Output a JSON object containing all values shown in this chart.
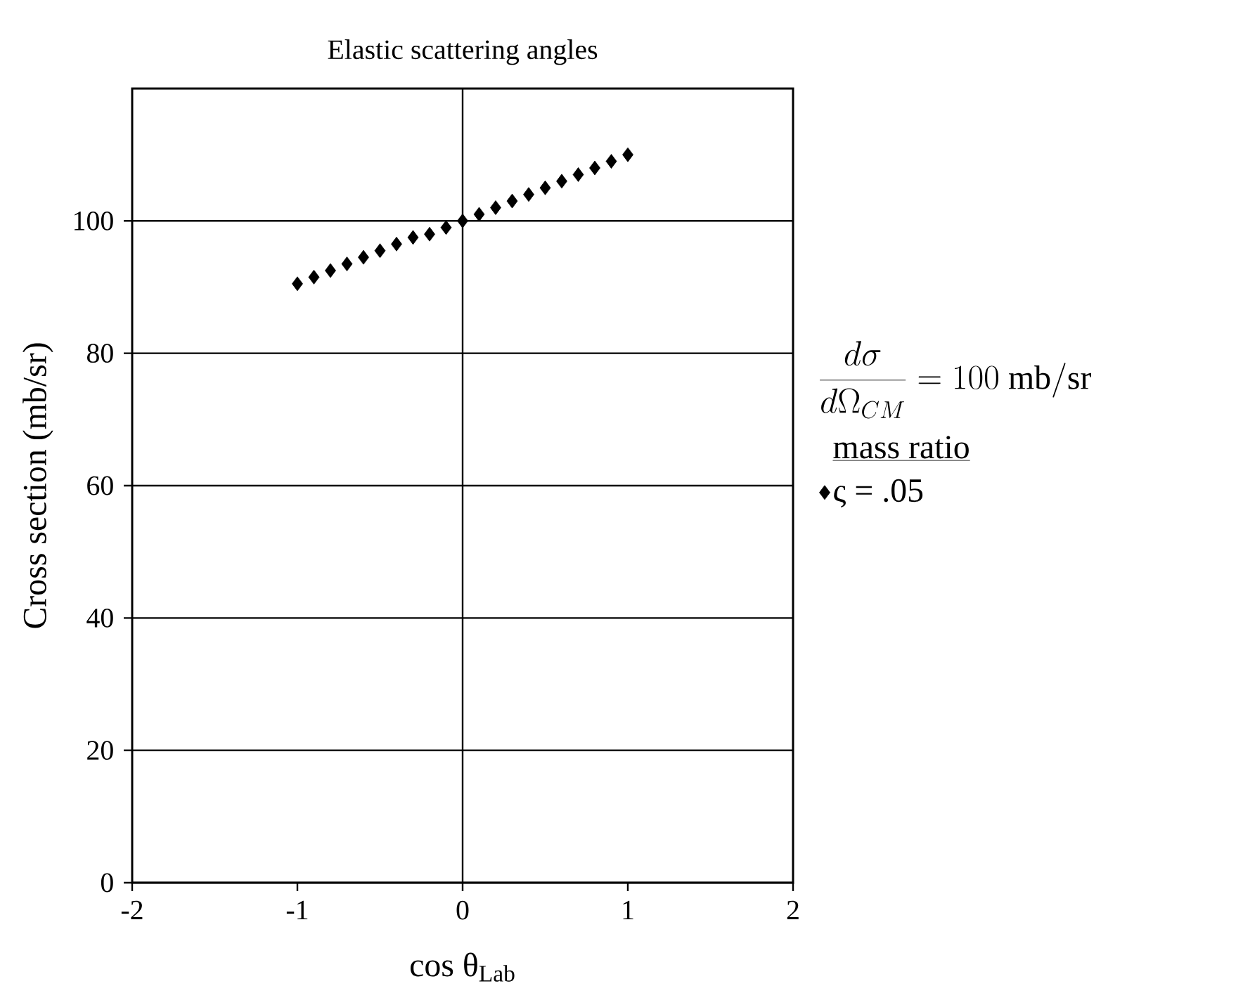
{
  "chart_data": {
    "type": "scatter",
    "title": "Elastic scattering angles",
    "xlabel": "cos θ$_{Lab}$",
    "ylabel": "Cross section (mb/sr)",
    "legend_title": "mass ratio",
    "annotations": [
      "\\frac{d\\sigma}{d\\Omega_{CM}} = 100\\ \\mathrm{mb/sr}"
    ],
    "x": [
      -1.0,
      -0.9,
      -0.8,
      -0.7,
      -0.6,
      -0.5,
      -0.4,
      -0.3,
      -0.2,
      -0.1,
      0.0,
      0.1,
      0.2,
      0.3,
      0.4,
      0.5,
      0.6,
      0.7,
      0.8,
      0.9,
      1.0
    ],
    "series": [
      {
        "name": "ς = .05",
        "color": "#000000",
        "values": [
          90.5,
          91.5,
          92.5,
          93.5,
          94.5,
          95.5,
          96.5,
          97.5,
          98,
          99,
          100,
          101,
          102,
          103,
          104,
          105,
          106,
          107,
          108,
          109,
          110
        ]
      }
    ],
    "xlim": [
      -2,
      2
    ],
    "ylim": [
      0,
      120
    ],
    "xticks": [
      -2,
      -1,
      0,
      1,
      2
    ],
    "yticks": [
      0,
      20,
      40,
      60,
      80,
      100
    ],
    "grid": "y",
    "ref_lines": [
      {
        "axis": "x",
        "value": 0
      }
    ],
    "legend": "right",
    "marker": "diamond"
  }
}
